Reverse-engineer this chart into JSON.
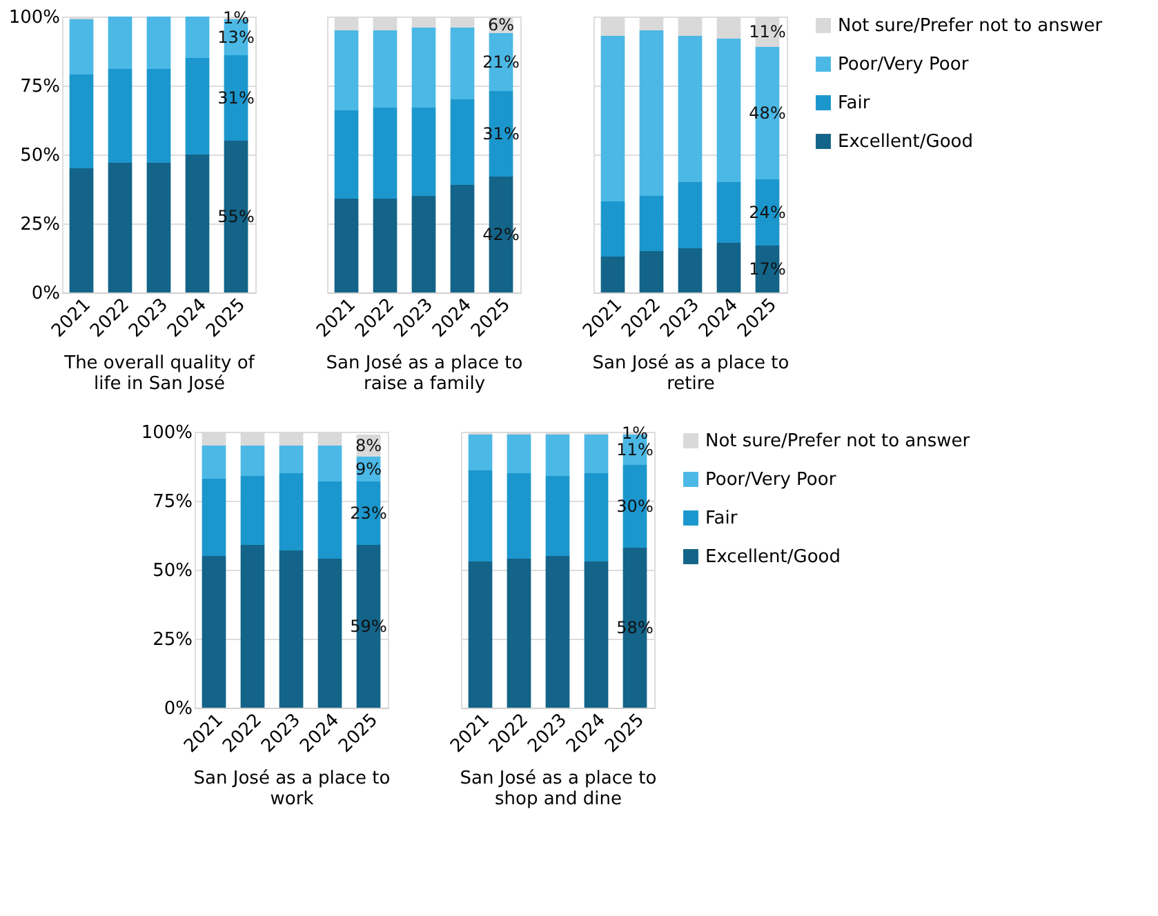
{
  "chart_data": [
    {
      "type": "bar",
      "stacked": true,
      "xlabel": "The overall quality of life in San José",
      "categories": [
        "2021",
        "2022",
        "2023",
        "2024",
        "2025"
      ],
      "ylim": [
        0,
        100
      ],
      "yticks": [
        {
          "value": 0,
          "label": "0%"
        },
        {
          "value": 25,
          "label": "25%"
        },
        {
          "value": 50,
          "label": "50%"
        },
        {
          "value": 75,
          "label": "75%"
        },
        {
          "value": 100,
          "label": "100%"
        }
      ],
      "grid": "y",
      "legend": "right",
      "series": [
        {
          "name": "Excellent/Good",
          "color": "#136488",
          "values": [
            45,
            47,
            47,
            50,
            55
          ],
          "value_labels": [
            null,
            null,
            null,
            null,
            "55%"
          ]
        },
        {
          "name": "Fair",
          "color": "#1c97cd",
          "values": [
            34,
            34,
            34,
            35,
            31
          ],
          "value_labels": [
            null,
            null,
            null,
            null,
            "31%"
          ]
        },
        {
          "name": "Poor/Very Poor",
          "color": "#4bb8e6",
          "values": [
            20,
            19,
            19,
            15,
            13
          ],
          "value_labels": [
            null,
            null,
            null,
            null,
            "13%"
          ]
        },
        {
          "name": "Not sure/Prefer not to answer",
          "color": "#d9d9d9",
          "values": [
            1,
            0,
            0,
            0,
            1
          ],
          "value_labels": [
            null,
            null,
            null,
            null,
            "1%"
          ]
        }
      ]
    },
    {
      "type": "bar",
      "stacked": true,
      "xlabel": "San José as a place to raise a family",
      "categories": [
        "2021",
        "2022",
        "2023",
        "2024",
        "2025"
      ],
      "ylim": [
        0,
        100
      ],
      "yticks": [
        {
          "value": 0,
          "label": null
        },
        {
          "value": 25,
          "label": null
        },
        {
          "value": 50,
          "label": null
        },
        {
          "value": 75,
          "label": null
        },
        {
          "value": 100,
          "label": null
        }
      ],
      "grid": "y",
      "tick_labels": "x",
      "series": [
        {
          "color": "#136488",
          "values": [
            34,
            34,
            35,
            39,
            42
          ],
          "value_labels": [
            null,
            null,
            null,
            null,
            "42%"
          ]
        },
        {
          "color": "#1c97cd",
          "values": [
            32,
            33,
            32,
            31,
            31
          ],
          "value_labels": [
            null,
            null,
            null,
            null,
            "31%"
          ]
        },
        {
          "color": "#4bb8e6",
          "values": [
            29,
            28,
            29,
            26,
            21
          ],
          "value_labels": [
            null,
            null,
            null,
            null,
            "21%"
          ]
        },
        {
          "color": "#d9d9d9",
          "values": [
            5,
            5,
            4,
            4,
            6
          ],
          "value_labels": [
            null,
            null,
            null,
            null,
            "6%"
          ]
        }
      ]
    },
    {
      "type": "bar",
      "stacked": true,
      "xlabel": "San José as a place to retire",
      "categories": [
        "2021",
        "2022",
        "2023",
        "2024",
        "2025"
      ],
      "ylim": [
        0,
        100
      ],
      "yticks": [
        {
          "value": 0,
          "label": null
        },
        {
          "value": 25,
          "label": null
        },
        {
          "value": 50,
          "label": null
        },
        {
          "value": 75,
          "label": null
        },
        {
          "value": 100,
          "label": null
        }
      ],
      "grid": "y",
      "tick_labels": "x",
      "series": [
        {
          "color": "#136488",
          "values": [
            13,
            15,
            16,
            18,
            17
          ],
          "value_labels": [
            null,
            null,
            null,
            null,
            "17%"
          ]
        },
        {
          "color": "#1c97cd",
          "values": [
            20,
            20,
            24,
            22,
            24
          ],
          "value_labels": [
            null,
            null,
            null,
            null,
            "24%"
          ]
        },
        {
          "color": "#4bb8e6",
          "values": [
            60,
            60,
            53,
            52,
            48
          ],
          "value_labels": [
            null,
            null,
            null,
            null,
            "48%"
          ]
        },
        {
          "color": "#d9d9d9",
          "values": [
            7,
            5,
            7,
            8,
            11
          ],
          "value_labels": [
            null,
            null,
            null,
            null,
            "11%"
          ]
        }
      ]
    },
    {
      "type": "bar",
      "stacked": true,
      "xlabel": "San José as a place to work",
      "categories": [
        "2021",
        "2022",
        "2023",
        "2024",
        "2025"
      ],
      "ylim": [
        0,
        100
      ],
      "yticks": [
        {
          "value": 0,
          "label": "0%"
        },
        {
          "value": 25,
          "label": "25%"
        },
        {
          "value": 50,
          "label": "50%"
        },
        {
          "value": 75,
          "label": "75%"
        },
        {
          "value": 100,
          "label": "100%"
        }
      ],
      "grid": "y",
      "series": [
        {
          "color": "#136488",
          "values": [
            55,
            59,
            57,
            54,
            59
          ],
          "value_labels": [
            null,
            null,
            null,
            null,
            "59%"
          ]
        },
        {
          "color": "#1c97cd",
          "values": [
            28,
            25,
            28,
            28,
            23
          ],
          "value_labels": [
            null,
            null,
            null,
            null,
            "23%"
          ]
        },
        {
          "color": "#4bb8e6",
          "values": [
            12,
            11,
            10,
            13,
            9
          ],
          "value_labels": [
            null,
            null,
            null,
            null,
            "9%"
          ]
        },
        {
          "color": "#d9d9d9",
          "values": [
            5,
            5,
            5,
            5,
            8
          ],
          "value_labels": [
            null,
            null,
            null,
            null,
            "8%"
          ]
        }
      ]
    },
    {
      "type": "bar",
      "stacked": true,
      "xlabel": "San José as a place to shop and dine",
      "categories": [
        "2021",
        "2022",
        "2023",
        "2024",
        "2025"
      ],
      "ylim": [
        0,
        100
      ],
      "yticks": [
        {
          "value": 0,
          "label": null
        },
        {
          "value": 25,
          "label": null
        },
        {
          "value": 50,
          "label": null
        },
        {
          "value": 75,
          "label": null
        },
        {
          "value": 100,
          "label": null
        }
      ],
      "grid": "y",
      "tick_labels": "x",
      "legend": "right",
      "series": [
        {
          "name": "Excellent/Good",
          "color": "#136488",
          "values": [
            53,
            54,
            55,
            53,
            58
          ],
          "value_labels": [
            null,
            null,
            null,
            null,
            "58%"
          ]
        },
        {
          "name": "Fair",
          "color": "#1c97cd",
          "values": [
            33,
            31,
            29,
            32,
            30
          ],
          "value_labels": [
            null,
            null,
            null,
            null,
            "30%"
          ]
        },
        {
          "name": "Poor/Very Poor",
          "color": "#4bb8e6",
          "values": [
            13,
            14,
            15,
            14,
            11
          ],
          "value_labels": [
            null,
            null,
            null,
            null,
            "11%"
          ]
        },
        {
          "name": "Not sure/Prefer not to answer",
          "color": "#d9d9d9",
          "values": [
            1,
            1,
            1,
            1,
            1
          ],
          "value_labels": [
            null,
            null,
            null,
            null,
            "1%"
          ]
        }
      ]
    }
  ]
}
